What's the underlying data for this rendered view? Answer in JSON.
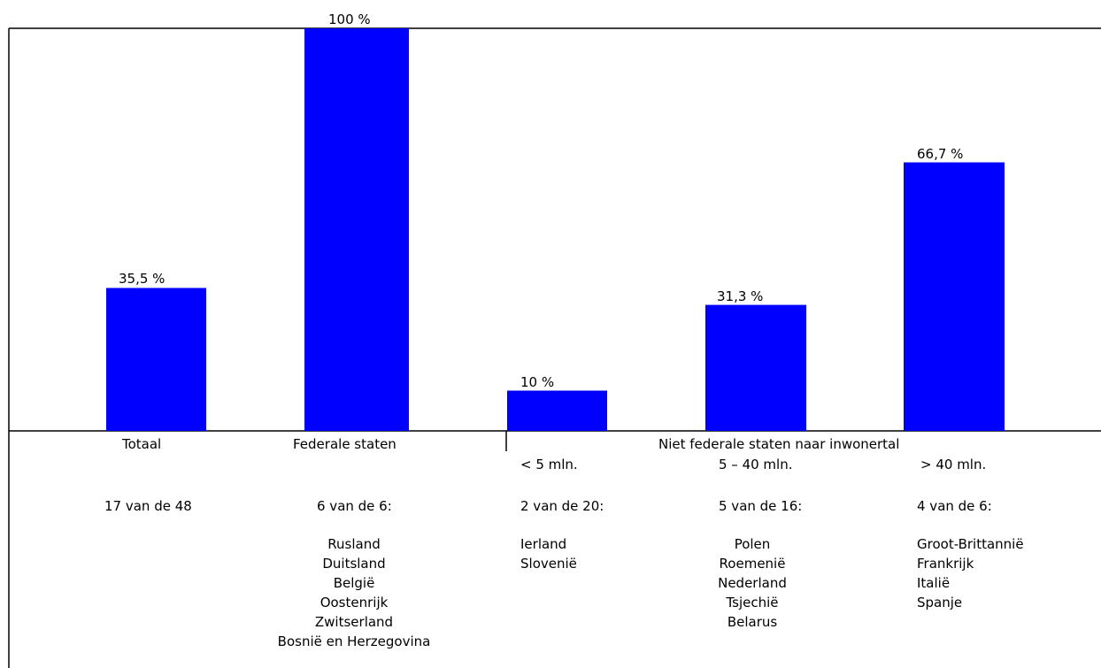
{
  "chart_data": {
    "type": "bar",
    "categories": [
      "Totaal",
      "Federale staten",
      "< 5 mln.",
      "5 – 40 mln.",
      "> 40 mln."
    ],
    "values": [
      35.5,
      100,
      10,
      31.3,
      66.7
    ],
    "value_labels": [
      "35,5 %",
      "100 %",
      "10 %",
      "31,3 %",
      "66,7 %"
    ],
    "ylim": [
      0,
      100
    ],
    "bar_color": "#0000ff",
    "grid": false,
    "group_label": "Niet federale staten naar inwonertal"
  },
  "columns": [
    {
      "label": "Totaal",
      "count": "17 van de 48",
      "countries": []
    },
    {
      "label": "Federale staten",
      "count": "6 van de 6:",
      "countries": [
        "Rusland",
        "Duitsland",
        "België",
        "Oostenrijk",
        "Zwitserland",
        "Bosnië en Herzegovina"
      ]
    },
    {
      "label": "< 5 mln.",
      "count": "2 van de 20:",
      "countries": [
        "Ierland",
        "Slovenië"
      ]
    },
    {
      "label": "5 – 40 mln.",
      "count": "5 van de 16:",
      "countries": [
        "Polen",
        "Roemenië",
        "Nederland",
        "Tsjechië",
        "Belarus"
      ]
    },
    {
      "label": "> 40 mln.",
      "count": "4 van de 6:",
      "countries": [
        "Groot-Brittannië",
        "Frankrijk",
        "Italië",
        "Spanje"
      ]
    }
  ]
}
